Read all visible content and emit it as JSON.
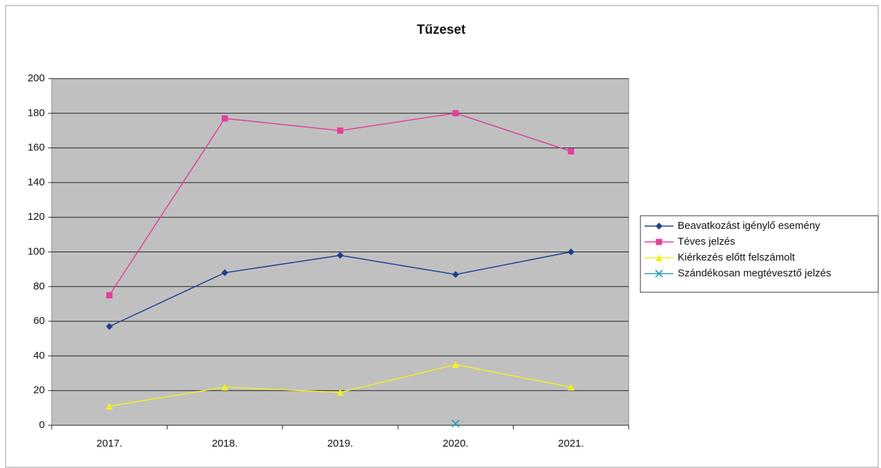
{
  "chart_data": {
    "type": "line",
    "title": "Tűzeset",
    "categories": [
      "2017.",
      "2018.",
      "2019.",
      "2020.",
      "2021."
    ],
    "series": [
      {
        "name": "Beavatkozást igénylő esemény",
        "color": "#1f3f8f",
        "marker": "diamond",
        "values": [
          57,
          88,
          98,
          87,
          100
        ]
      },
      {
        "name": "Téves jelzés",
        "color": "#e0409a",
        "marker": "square",
        "values": [
          75,
          177,
          170,
          180,
          158
        ]
      },
      {
        "name": "Kiérkezés előtt felszámolt",
        "color": "#f2f020",
        "marker": "triangle",
        "values": [
          11,
          22,
          19,
          35,
          22
        ]
      },
      {
        "name": "Szándékosan megtévesztő jelzés",
        "color": "#2aa0b8",
        "marker": "x",
        "values": [
          null,
          null,
          null,
          1,
          null
        ]
      }
    ],
    "ylim": [
      0,
      200
    ],
    "yticks": [
      0,
      20,
      40,
      60,
      80,
      100,
      120,
      140,
      160,
      180,
      200
    ],
    "grid": true,
    "legend": "right"
  }
}
